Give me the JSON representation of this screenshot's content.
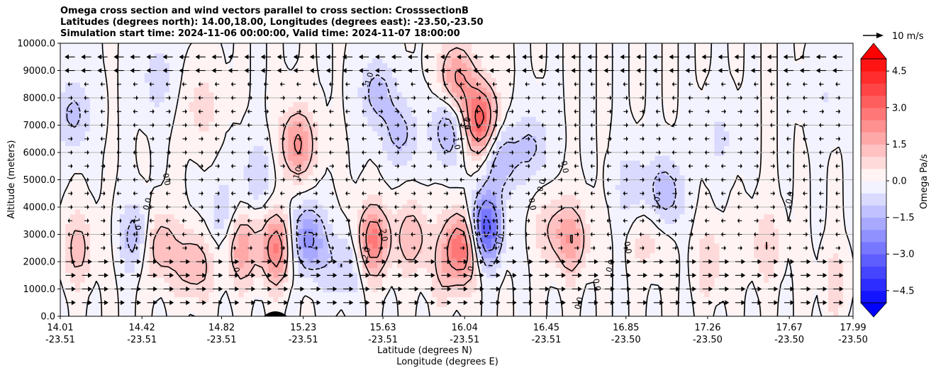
{
  "chart_data": {
    "type": "contour",
    "title_lines": [
      "Omega cross section and wind vectors parallel to cross section: CrosssectionB",
      "Latitudes (degrees north): 14.00,18.00, Longitudes (degrees east): -23.50,-23.50",
      "Simulation start time: 2024-11-06 00:00:00, Valid time: 2024-11-07 18:00:00"
    ],
    "ylabel": "Altitude (meters)",
    "xlabel_lines": [
      "Latitude (degrees N)",
      "Longitude (degrees E)"
    ],
    "ylim": [
      0,
      10000
    ],
    "y_ticks": [
      "0.0",
      "1000.0",
      "2000.0",
      "3000.0",
      "4000.0",
      "5000.0",
      "6000.0",
      "7000.0",
      "8000.0",
      "9000.0",
      "10000.0"
    ],
    "y_tick_values": [
      0,
      1000,
      2000,
      3000,
      4000,
      5000,
      6000,
      7000,
      8000,
      9000,
      10000
    ],
    "xlim": [
      14.01,
      17.99
    ],
    "x_ticks": [
      {
        "lat": "14.01",
        "lon": "-23.51"
      },
      {
        "lat": "14.42",
        "lon": "-23.51"
      },
      {
        "lat": "14.82",
        "lon": "-23.51"
      },
      {
        "lat": "15.23",
        "lon": "-23.51"
      },
      {
        "lat": "15.63",
        "lon": "-23.51"
      },
      {
        "lat": "16.04",
        "lon": "-23.51"
      },
      {
        "lat": "16.45",
        "lon": "-23.51"
      },
      {
        "lat": "16.85",
        "lon": "-23.50"
      },
      {
        "lat": "17.26",
        "lon": "-23.50"
      },
      {
        "lat": "17.67",
        "lon": "-23.50"
      },
      {
        "lat": "17.99",
        "lon": "-23.50"
      }
    ],
    "x_tick_values": [
      14.01,
      14.42,
      14.82,
      15.23,
      15.63,
      16.04,
      16.45,
      16.85,
      17.26,
      17.67,
      17.99
    ],
    "grid": "horizontal",
    "colorbar": {
      "label": "Omega Pa/s",
      "ticks": [
        "4.5",
        "3.0",
        "1.5",
        "0.0",
        "−1.5",
        "−3.0",
        "−4.5"
      ],
      "tick_values": [
        4.5,
        3.0,
        1.5,
        0.0,
        -1.5,
        -3.0,
        -4.5
      ],
      "range": [
        -5,
        5
      ],
      "extend": "both",
      "colors": {
        "positive": "#ff0000",
        "negative": "#0000ff",
        "neutral": "#ffffff"
      }
    },
    "contour_label_values": [
      "0.0",
      "1.0",
      "-1.0",
      "2.0",
      "-2.0"
    ],
    "quiver_key_label": "10 m/s",
    "quiver_key_ms": 10,
    "omega_features": [
      {
        "lat": 14.08,
        "z": 7400,
        "omega": -1.2
      },
      {
        "lat": 14.1,
        "z": 2500,
        "omega": 1.2
      },
      {
        "lat": 14.4,
        "z": 2900,
        "omega": -1.5
      },
      {
        "lat": 14.5,
        "z": 2600,
        "omega": 1.8
      },
      {
        "lat": 14.5,
        "z": 8700,
        "omega": -0.8
      },
      {
        "lat": 14.68,
        "z": 1900,
        "omega": 1.6
      },
      {
        "lat": 14.72,
        "z": 7700,
        "omega": 0.8
      },
      {
        "lat": 14.82,
        "z": 3700,
        "omega": -0.9
      },
      {
        "lat": 14.92,
        "z": 2500,
        "omega": 1.8
      },
      {
        "lat": 15.0,
        "z": 5200,
        "omega": -0.9
      },
      {
        "lat": 15.1,
        "z": 2500,
        "omega": 2.5
      },
      {
        "lat": 15.2,
        "z": 6300,
        "omega": 2.2
      },
      {
        "lat": 15.25,
        "z": 2800,
        "omega": -2.4
      },
      {
        "lat": 15.43,
        "z": 1900,
        "omega": -1.2
      },
      {
        "lat": 15.58,
        "z": 2800,
        "omega": 2.6
      },
      {
        "lat": 15.6,
        "z": 8200,
        "omega": -1.3
      },
      {
        "lat": 15.72,
        "z": 6700,
        "omega": -1.2
      },
      {
        "lat": 15.78,
        "z": 2900,
        "omega": 1.4
      },
      {
        "lat": 16.0,
        "z": 8700,
        "omega": 2.2
      },
      {
        "lat": 15.94,
        "z": 1700,
        "omega": 0.8
      },
      {
        "lat": 16.03,
        "z": 2600,
        "omega": 3.2
      },
      {
        "lat": 15.96,
        "z": 6900,
        "omega": -1.7
      },
      {
        "lat": 16.12,
        "z": 7200,
        "omega": 3.4
      },
      {
        "lat": 16.14,
        "z": 3200,
        "omega": -3.6
      },
      {
        "lat": 16.22,
        "z": 5800,
        "omega": -1.6
      },
      {
        "lat": 16.38,
        "z": 6200,
        "omega": -1.1
      },
      {
        "lat": 16.48,
        "z": 3200,
        "omega": 0.9
      },
      {
        "lat": 16.58,
        "z": 2800,
        "omega": 1.7
      },
      {
        "lat": 16.88,
        "z": 4800,
        "omega": -0.9
      },
      {
        "lat": 17.05,
        "z": 4500,
        "omega": -1.5
      },
      {
        "lat": 16.97,
        "z": 2800,
        "omega": 0.8
      },
      {
        "lat": 17.28,
        "z": 2000,
        "omega": 0.9
      },
      {
        "lat": 17.32,
        "z": 6500,
        "omega": -0.6
      },
      {
        "lat": 17.55,
        "z": 2600,
        "omega": 0.9
      },
      {
        "lat": 17.9,
        "z": 1200,
        "omega": 0.7
      },
      {
        "lat": 17.85,
        "z": 8000,
        "omega": -0.5
      }
    ]
  }
}
